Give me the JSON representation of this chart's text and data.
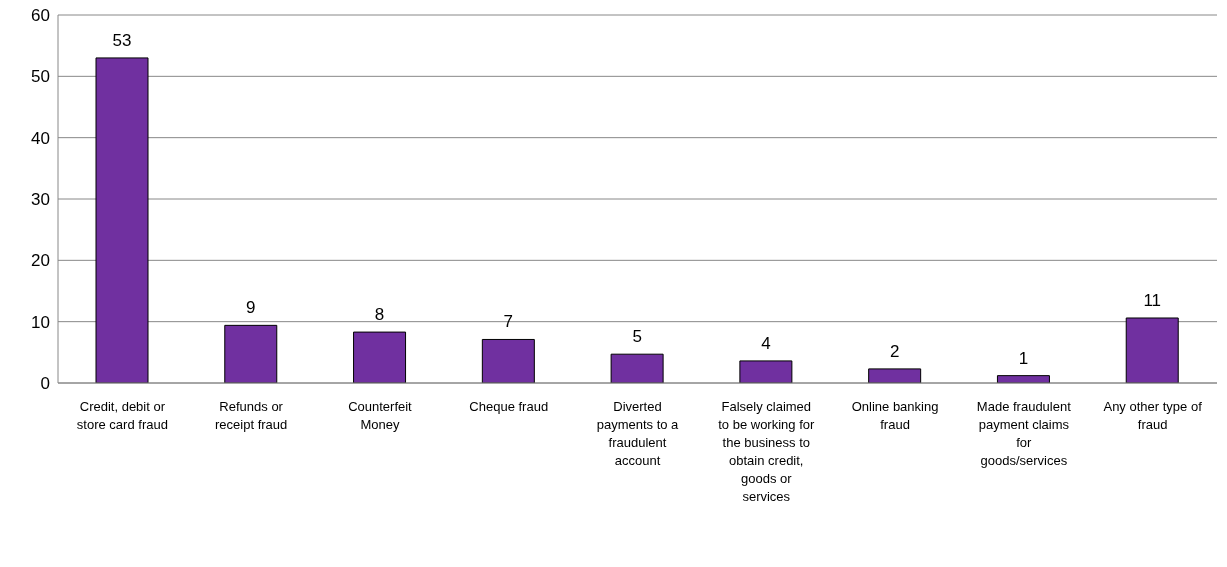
{
  "chart_data": {
    "type": "bar",
    "categories": [
      "Credit, debit or store card fraud",
      "Refunds or receipt fraud",
      "Counterfeit Money",
      "Cheque fraud",
      "Diverted payments to a fraudulent account",
      "Falsely claimed to be working for the business to obtain credit, goods or services",
      "Online banking fraud",
      "Made fraudulent payment claims for goods/services",
      "Any other type of fraud"
    ],
    "values": [
      53,
      9.4,
      8.3,
      7.1,
      4.7,
      3.6,
      2.3,
      1.2,
      10.6
    ],
    "value_labels": [
      "53",
      "9",
      "8",
      "7",
      "5",
      "4",
      "2",
      "1",
      "11"
    ],
    "color": "#7030a0",
    "ylim": [
      0,
      60
    ],
    "yticks": [
      0,
      10,
      20,
      30,
      40,
      50,
      60
    ],
    "grid": "y"
  }
}
